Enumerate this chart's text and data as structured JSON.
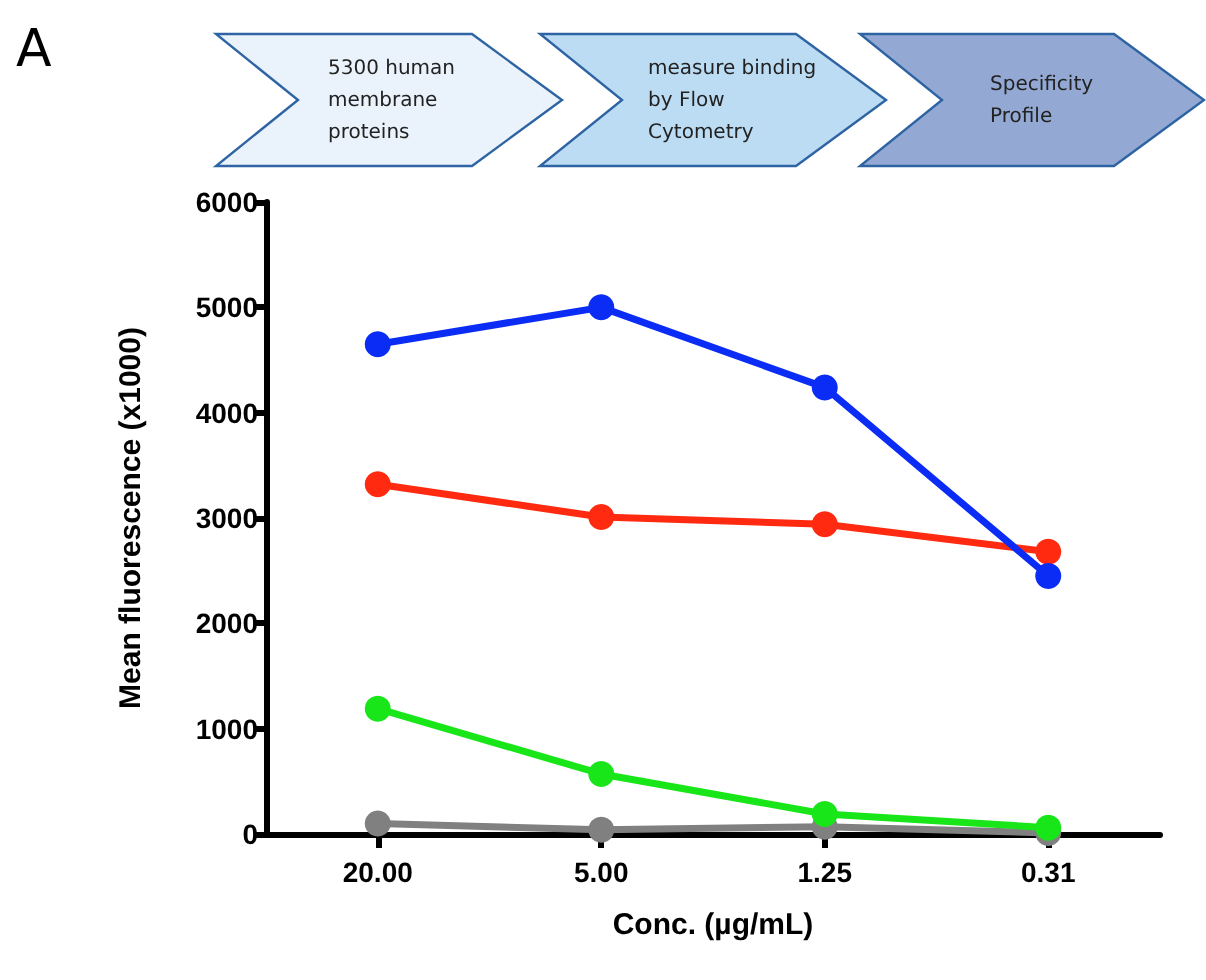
{
  "chart_data": {
    "type": "line",
    "xlabel": "Conc. (µg/mL)",
    "ylabel": "Mean fluorescence (x1000)",
    "annotations": [
      "A",
      "5300 human membrane proteins",
      "measure binding by Flow Cytometry",
      "Specificity Profile"
    ],
    "categories": [
      "20.00",
      "5.00",
      "1.25",
      "0.31"
    ],
    "series": [
      {
        "color": "#0b2cf5",
        "values": [
          4650,
          5000,
          4240,
          2450
        ]
      },
      {
        "color": "#ff2a0f",
        "values": [
          3320,
          3010,
          2940,
          2680
        ]
      },
      {
        "color": "#19e619",
        "values": [
          1190,
          570,
          190,
          60
        ]
      },
      {
        "color": "#808080",
        "values": [
          100,
          40,
          70,
          10
        ]
      }
    ],
    "ylim": [
      0,
      6000
    ],
    "yticks": [
      0,
      1000,
      2000,
      3000,
      4000,
      5000,
      6000
    ],
    "marker": "circle",
    "line_style": "solid"
  }
}
